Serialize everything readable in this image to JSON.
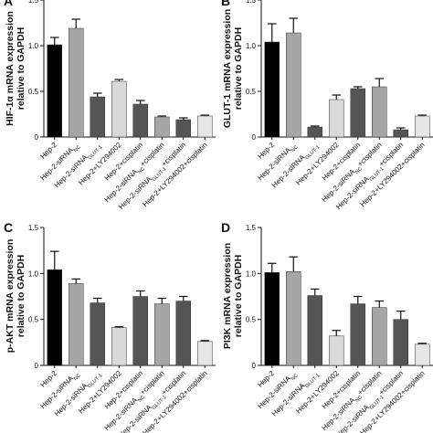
{
  "chart_data": [
    {
      "type": "bar",
      "panel": "A",
      "ylabel_line1": "HIF-1α mRNA expression",
      "ylabel_line2": "relative to GAPDH",
      "ylim": [
        0,
        1.5
      ],
      "yticks": [
        "0",
        "0.5",
        "1.0",
        "1.5"
      ],
      "categories": [
        "Hep-2",
        "Hep-2-siRNA_NC",
        "Hep-2-siRNA_GLUT-1",
        "Hep-2+LY294002",
        "Hep-2+cisplatin",
        "Hep-2-siRNA_NC+cisplatin",
        "Hep-2-siRNA_GLUT-1+cisplatin",
        "Hep-2+LY294002+cisplatin"
      ],
      "values": [
        1.01,
        1.19,
        0.44,
        0.61,
        0.36,
        0.22,
        0.19,
        0.23
      ],
      "errors": [
        0.08,
        0.1,
        0.04,
        0.02,
        0.04,
        0.01,
        0.02,
        0.01
      ],
      "colors": [
        "#000000",
        "#a6a6a6",
        "#555555",
        "#d9d9d9",
        "#555555",
        "#a6a6a6",
        "#555555",
        "#e6e6e6"
      ]
    },
    {
      "type": "bar",
      "panel": "B",
      "ylabel_line1": "GLUT-1 mRNA expression",
      "ylabel_line2": "relative to GAPDH",
      "ylim": [
        0,
        1.5
      ],
      "yticks": [
        "0",
        "0.5",
        "1.0",
        "1.5"
      ],
      "categories": [
        "Hep-2",
        "Hep-2-siRNA_NC",
        "Hep-2-siRNA_GLUT-1",
        "Hep-2+LY294002",
        "Hep-2+cisplatin",
        "Hep-2-siRNA_NC+cisplatin",
        "Hep-2-siRNA_GLUT-1+cisplatin",
        "Hep-2+LY294002+cisplatin"
      ],
      "values": [
        1.04,
        1.14,
        0.11,
        0.41,
        0.53,
        0.55,
        0.08,
        0.23
      ],
      "errors": [
        0.2,
        0.16,
        0.01,
        0.05,
        0.02,
        0.09,
        0.02,
        0.01
      ],
      "colors": [
        "#000000",
        "#a6a6a6",
        "#555555",
        "#d9d9d9",
        "#555555",
        "#a6a6a6",
        "#555555",
        "#e6e6e6"
      ]
    },
    {
      "type": "bar",
      "panel": "C",
      "ylabel_line1": "p-AKT mRNA expression",
      "ylabel_line2": "relative to GAPDH",
      "ylim": [
        0,
        1.5
      ],
      "yticks": [
        "0",
        "0.5",
        "1.0",
        "1.5"
      ],
      "categories": [
        "Hep-2",
        "Hep-2-siRNA_NC",
        "Hep-2-siRNA_GLUT-1",
        "Hep-2+LY294002",
        "Hep-2+cisplatin",
        "Hep-2-siRNA_NC+cisplatin",
        "Hep-2-siRNA_GLUT-1+cisplatin",
        "Hep-2+LY294002+cisplatin"
      ],
      "values": [
        1.04,
        0.89,
        0.68,
        0.41,
        0.75,
        0.67,
        0.7,
        0.26
      ],
      "errors": [
        0.2,
        0.05,
        0.05,
        0.01,
        0.06,
        0.06,
        0.05,
        0.01
      ],
      "colors": [
        "#000000",
        "#a6a6a6",
        "#555555",
        "#d9d9d9",
        "#555555",
        "#a6a6a6",
        "#555555",
        "#e6e6e6"
      ]
    },
    {
      "type": "bar",
      "panel": "D",
      "ylabel_line1": "PI3K mRNA expression",
      "ylabel_line2": "relative to GAPDH",
      "ylim": [
        0,
        1.5
      ],
      "yticks": [
        "0",
        "0.5",
        "1.0",
        "1.5"
      ],
      "categories": [
        "Hep-2",
        "Hep-2-siRNA_NC",
        "Hep-2-siRNA_GLUT-1",
        "Hep-2+LY294002",
        "Hep-2+cisplatin",
        "Hep-2-siRNA_NC+cisplatin",
        "Hep-2-siRNA_GLUT-1+cisplatin",
        "Hep-2+LY294002+cisplatin"
      ],
      "values": [
        1.01,
        1.02,
        0.76,
        0.32,
        0.67,
        0.63,
        0.5,
        0.23
      ],
      "errors": [
        0.1,
        0.16,
        0.07,
        0.06,
        0.08,
        0.07,
        0.09,
        0.01
      ],
      "colors": [
        "#000000",
        "#a6a6a6",
        "#555555",
        "#d9d9d9",
        "#555555",
        "#a6a6a6",
        "#555555",
        "#e6e6e6"
      ]
    }
  ]
}
